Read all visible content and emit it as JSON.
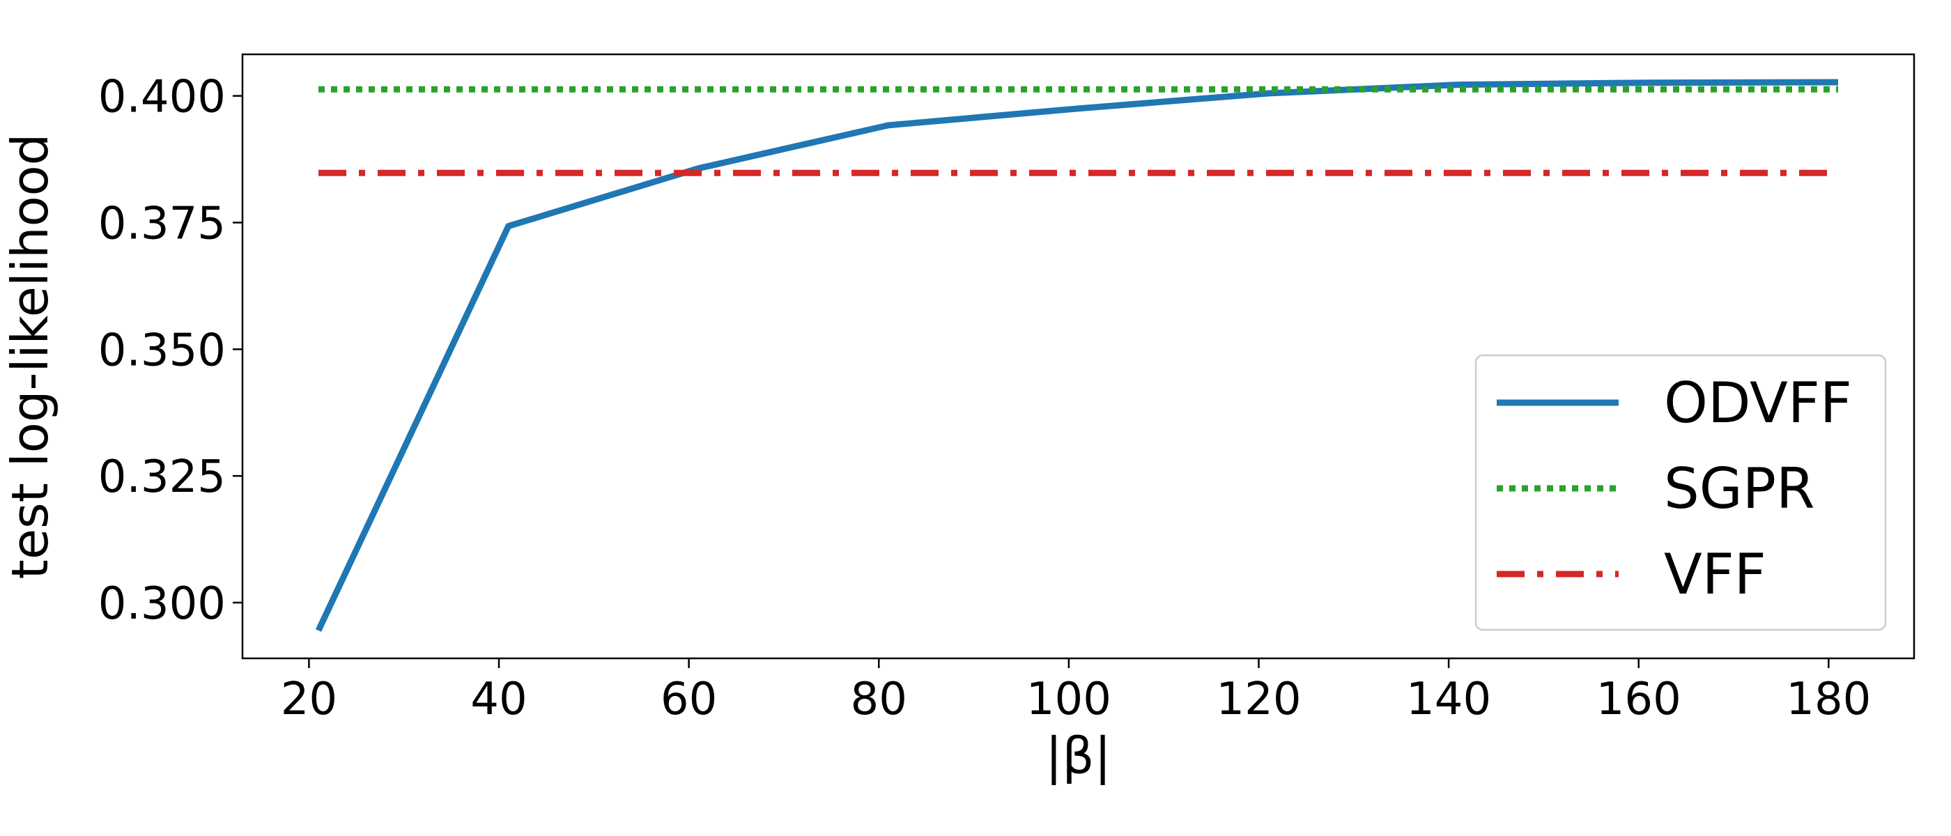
{
  "chart_data": {
    "type": "line",
    "title": "",
    "xlabel": "|β|",
    "ylabel": "test log-likelihood",
    "xlim": [
      13,
      189
    ],
    "ylim": [
      0.289,
      0.4082
    ],
    "xticks": [
      20,
      40,
      60,
      80,
      100,
      120,
      140,
      160,
      180
    ],
    "xtick_labels": [
      "20",
      "40",
      "60",
      "80",
      "100",
      "120",
      "140",
      "160",
      "180"
    ],
    "yticks": [
      0.3,
      0.325,
      0.35,
      0.375,
      0.4
    ],
    "ytick_labels": [
      "0.300",
      "0.325",
      "0.350",
      "0.375",
      "0.400"
    ],
    "grid": false,
    "legend_position": "lower-right",
    "series": [
      {
        "name": "ODVFF",
        "color": "#1f77b4",
        "style": "solid",
        "x": [
          21,
          41,
          61,
          81,
          101,
          121,
          141,
          161,
          181
        ],
        "y": [
          0.2945,
          0.3743,
          0.3857,
          0.3942,
          0.3975,
          0.4005,
          0.4022,
          0.4026,
          0.4027
        ]
      },
      {
        "name": "SGPR",
        "color": "#2ca02c",
        "style": "dotted",
        "x": [
          21,
          181
        ],
        "y": [
          0.4013,
          0.4013
        ]
      },
      {
        "name": "VFF",
        "color": "#d62728",
        "style": "dashdot",
        "x": [
          21,
          181
        ],
        "y": [
          0.3848,
          0.3848
        ]
      }
    ]
  }
}
